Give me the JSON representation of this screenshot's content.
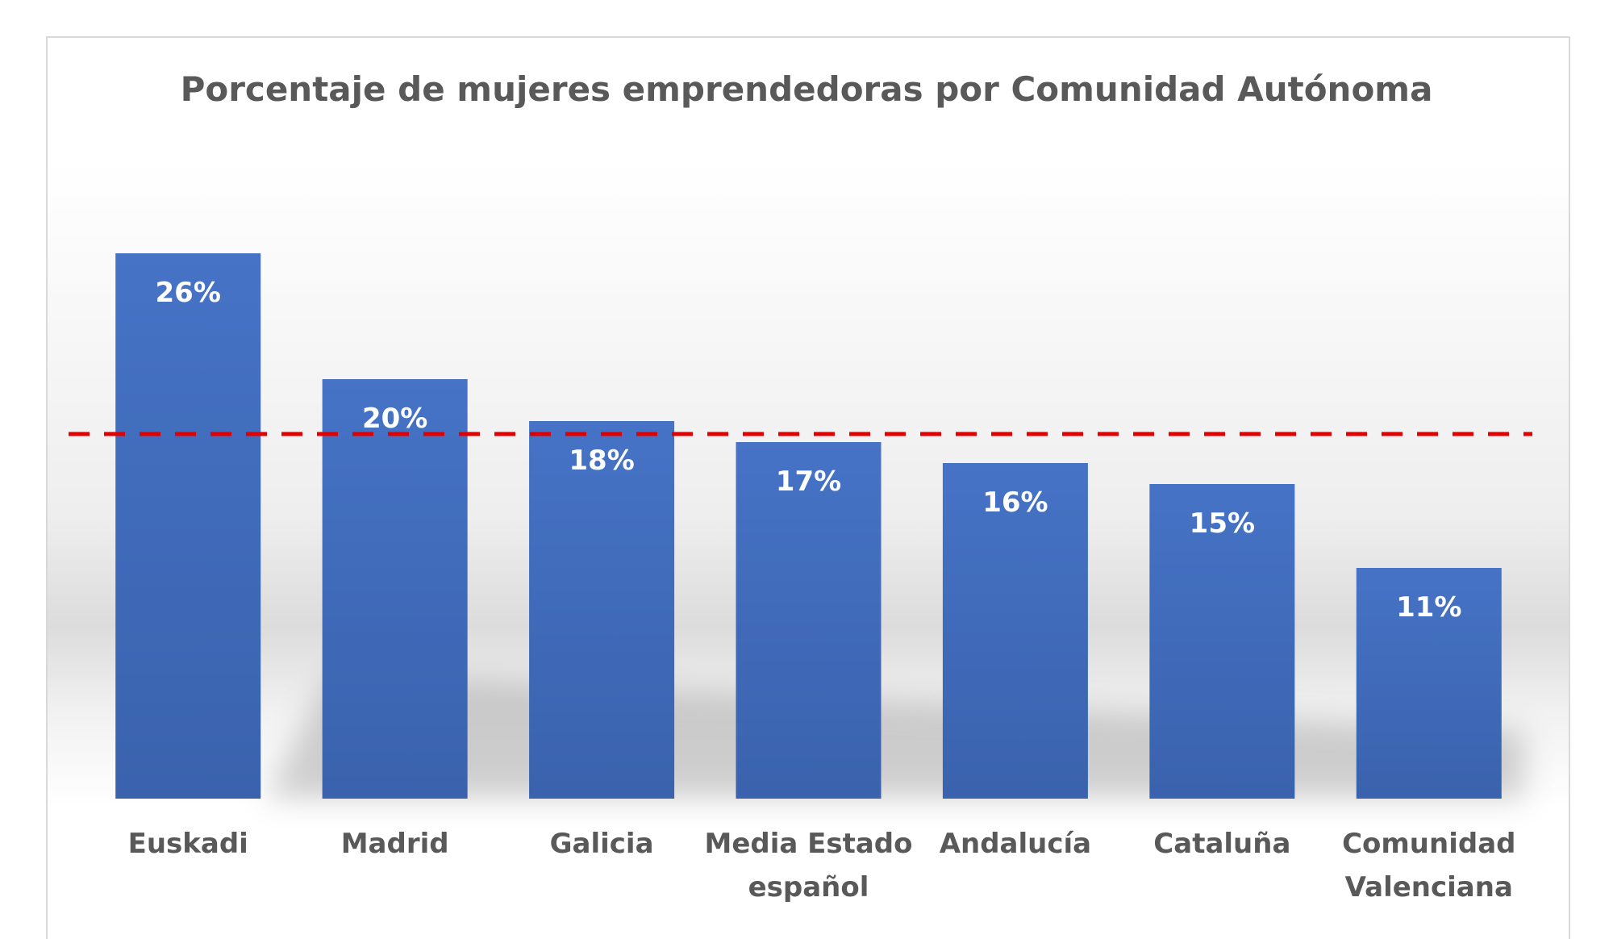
{
  "chart_data": {
    "type": "bar",
    "title": "Porcentaje de mujeres emprendedoras por Comunidad Autónoma",
    "xlabel": "",
    "ylabel": "",
    "categories": [
      "Euskadi",
      "Madrid",
      "Galicia",
      "Media Estado español",
      "Andalucía",
      "Cataluña",
      "Comunidad Valenciana"
    ],
    "category_lines": [
      [
        "Euskadi"
      ],
      [
        "Madrid"
      ],
      [
        "Galicia"
      ],
      [
        "Media Estado",
        "español"
      ],
      [
        "Andalucía"
      ],
      [
        "Cataluña"
      ],
      [
        "Comunidad",
        "Valenciana"
      ]
    ],
    "values": [
      26,
      20,
      18,
      17,
      16,
      15,
      11
    ],
    "data_labels": [
      "26%",
      "20%",
      "18%",
      "17%",
      "16%",
      "15%",
      "11%"
    ],
    "reference_line": {
      "value": 17,
      "style": "dashed",
      "color": "#e00000"
    },
    "ylim": [
      0,
      30
    ],
    "grid": false,
    "legend": "none",
    "bar_color": "#4472c4"
  }
}
